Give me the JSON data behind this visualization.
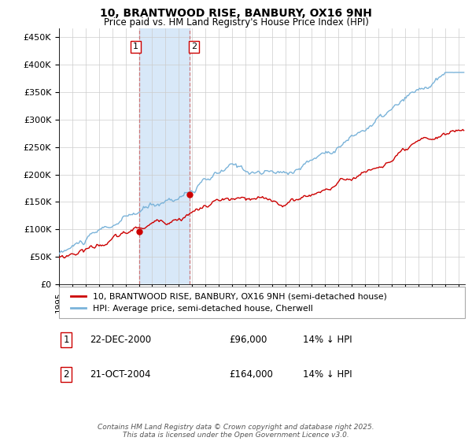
{
  "title": "10, BRANTWOOD RISE, BANBURY, OX16 9NH",
  "subtitle": "Price paid vs. HM Land Registry's House Price Index (HPI)",
  "ylabel_ticks": [
    "£0",
    "£50K",
    "£100K",
    "£150K",
    "£200K",
    "£250K",
    "£300K",
    "£350K",
    "£400K",
    "£450K"
  ],
  "ytick_vals": [
    0,
    50000,
    100000,
    150000,
    200000,
    250000,
    300000,
    350000,
    400000,
    450000
  ],
  "ylim": [
    0,
    465000
  ],
  "xlim_start": 1995.0,
  "xlim_end": 2025.5,
  "hpi_color": "#7ab3d9",
  "price_color": "#cc0000",
  "purchase1_x": 2001.0,
  "purchase1_y": 96000,
  "purchase2_x": 2004.8,
  "purchase2_y": 164000,
  "legend_label1": "10, BRANTWOOD RISE, BANBURY, OX16 9NH (semi-detached house)",
  "legend_label2": "HPI: Average price, semi-detached house, Cherwell",
  "table_row1": [
    "1",
    "22-DEC-2000",
    "£96,000",
    "14% ↓ HPI"
  ],
  "table_row2": [
    "2",
    "21-OCT-2004",
    "£164,000",
    "14% ↓ HPI"
  ],
  "footer": "Contains HM Land Registry data © Crown copyright and database right 2025.\nThis data is licensed under the Open Government Licence v3.0.",
  "bg_color": "#ffffff",
  "grid_color": "#cccccc",
  "shading_color": "#d8e8f8"
}
